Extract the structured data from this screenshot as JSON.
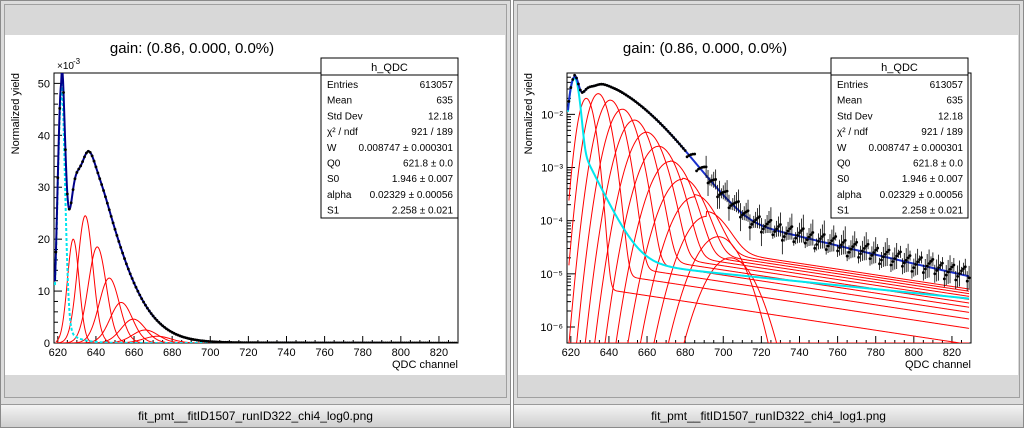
{
  "windows": [
    {
      "caption": "fit_pmt__fitID1507_runID322_chi4_log0.png",
      "chart_data": {
        "type": "scatter",
        "title": "gain: (0.86, 0.000, 0.0%)",
        "xlabel": "QDC channel",
        "ylabel": "Normalized yield",
        "xlim": [
          618,
          830
        ],
        "xticks": [
          "620",
          "640",
          "660",
          "680",
          "700",
          "720",
          "740",
          "760",
          "780",
          "800",
          "820"
        ],
        "ylim": [
          0,
          0.052
        ],
        "y_log": false,
        "yticks": [
          "0",
          "10",
          "20",
          "30",
          "40",
          "50"
        ],
        "y_exponent": "×10",
        "y_exponent_power": "-3",
        "stats": {
          "title": "h_QDC",
          "rows": [
            {
              "label": "Entries",
              "value": "613057"
            },
            {
              "label": "Mean",
              "value": "635"
            },
            {
              "label": "Std Dev",
              "value": "12.18"
            },
            {
              "label": "χ² / ndf",
              "value": "921 / 189"
            },
            {
              "label": "W",
              "value": "0.008747 ± 0.000301"
            },
            {
              "label": "Q0",
              "value": "621.8 ± 0.0"
            },
            {
              "label": "S0",
              "value": "1.946 ± 0.007"
            },
            {
              "label": "alpha",
              "value": "0.02329 ± 0.00056"
            },
            {
              "label": "S1",
              "value": "2.258 ± 0.021"
            }
          ]
        },
        "colors": {
          "data": "#000000",
          "total": "#00008b",
          "pedestal": "#00e5ee",
          "components": "#ff0000"
        }
      }
    },
    {
      "caption": "fit_pmt__fitID1507_runID322_chi4_log1.png",
      "chart_data": {
        "type": "scatter",
        "title": "gain: (0.86, 0.000, 0.0%)",
        "xlabel": "QDC channel",
        "ylabel": "Normalized yield",
        "xlim": [
          618,
          830
        ],
        "xticks": [
          "620",
          "640",
          "660",
          "680",
          "700",
          "720",
          "740",
          "760",
          "780",
          "800",
          "820"
        ],
        "ylim": [
          5e-07,
          0.06
        ],
        "y_log": true,
        "yticks": [
          "10⁻⁶",
          "10⁻⁵",
          "10⁻⁴",
          "10⁻³",
          "10⁻²"
        ],
        "stats": {
          "title": "h_QDC",
          "rows": [
            {
              "label": "Entries",
              "value": "613057"
            },
            {
              "label": "Mean",
              "value": "635"
            },
            {
              "label": "Std Dev",
              "value": "12.18"
            },
            {
              "label": "χ² / ndf",
              "value": "921 / 189"
            },
            {
              "label": "W",
              "value": "0.008747 ± 0.000301"
            },
            {
              "label": "Q0",
              "value": "621.8 ± 0.0"
            },
            {
              "label": "S0",
              "value": "1.946 ± 0.007"
            },
            {
              "label": "alpha",
              "value": "0.02329 ± 0.00056"
            },
            {
              "label": "S1",
              "value": "2.258 ± 0.021"
            }
          ]
        },
        "colors": {
          "data": "#000000",
          "total": "#1a2fcc",
          "pedestal": "#00e5ee",
          "components": "#ff0000"
        }
      }
    }
  ]
}
